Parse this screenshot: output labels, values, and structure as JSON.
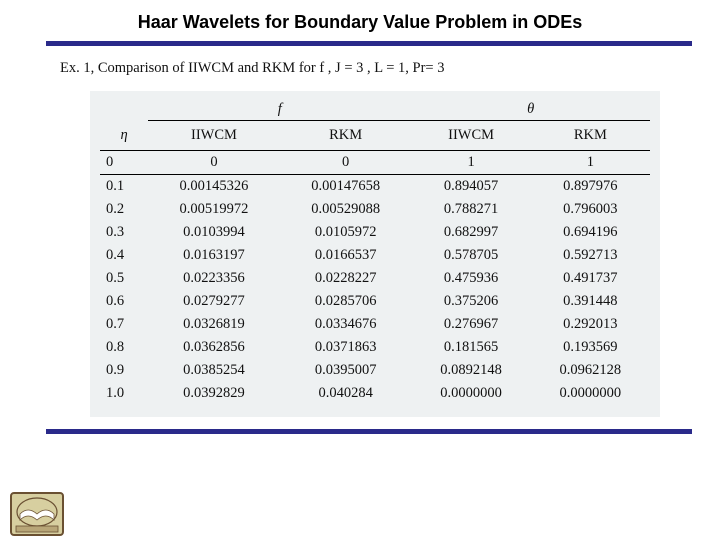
{
  "title": "Haar Wavelets for Boundary Value Problem in ODEs",
  "caption": "Ex. 1, Comparison of IIWCM and RKM for  f ,  J = 3 ,  L = 1,  Pr= 3",
  "colors": {
    "rule": "#2a2a8a",
    "table_bg": "#eef1f2",
    "text": "#111111",
    "title_text": "#000000",
    "logo_frame": "#6a5032",
    "logo_inner": "#d7cfa0",
    "logo_book": "#ffffff"
  },
  "table": {
    "type": "table",
    "super_headers": {
      "f": "f",
      "theta": "θ"
    },
    "columns": [
      "η",
      "IIWCM",
      "RKM",
      "IIWCM",
      "RKM"
    ],
    "rows": [
      [
        "0",
        "0",
        "0",
        "1",
        "1"
      ],
      [
        "0.1",
        "0.00145326",
        "0.00147658",
        "0.894057",
        "0.897976"
      ],
      [
        "0.2",
        "0.00519972",
        "0.00529088",
        "0.788271",
        "0.796003"
      ],
      [
        "0.3",
        "0.0103994",
        "0.0105972",
        "0.682997",
        "0.694196"
      ],
      [
        "0.4",
        "0.0163197",
        "0.0166537",
        "0.578705",
        "0.592713"
      ],
      [
        "0.5",
        "0.0223356",
        "0.0228227",
        "0.475936",
        "0.491737"
      ],
      [
        "0.6",
        "0.0279277",
        "0.0285706",
        "0.375206",
        "0.391448"
      ],
      [
        "0.7",
        "0.0326819",
        "0.0334676",
        "0.276967",
        "0.292013"
      ],
      [
        "0.8",
        "0.0362856",
        "0.0371863",
        "0.181565",
        "0.193569"
      ],
      [
        "0.9",
        "0.0385254",
        "0.0395007",
        "0.0892148",
        "0.0962128"
      ],
      [
        "1.0",
        "0.0392829",
        "0.040284",
        "0.0000000",
        "0.0000000"
      ]
    ],
    "font_size": 14.5,
    "col_count": 5
  }
}
